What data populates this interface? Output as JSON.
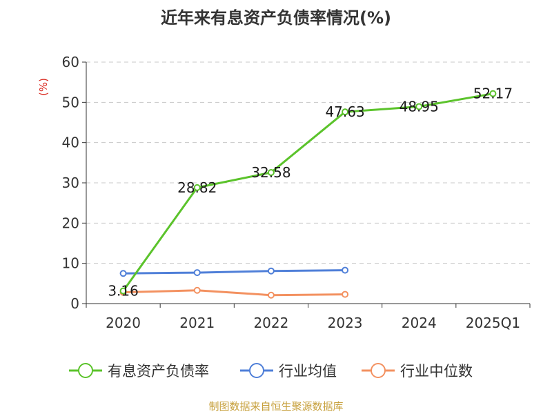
{
  "chart_data": {
    "type": "line",
    "title": "近年来有息资产负债率情况(%)",
    "ylabel": "(%)",
    "ylim": [
      0,
      60
    ],
    "yticks": [
      0,
      10,
      20,
      30,
      40,
      50,
      60
    ],
    "grid": true,
    "legend_position": "bottom",
    "categories": [
      "2020",
      "2021",
      "2022",
      "2023",
      "2024",
      "2025Q1"
    ],
    "series": [
      {
        "name": "有息资产负债率",
        "color": "#5bc32b",
        "values": [
          3.16,
          28.82,
          32.58,
          47.63,
          48.95,
          52.17
        ],
        "labels": [
          "3.16",
          "28.82",
          "32.58",
          "47.63",
          "48.95",
          "52.17"
        ]
      },
      {
        "name": "行业均值",
        "color": "#4f7fd8",
        "values": [
          7.5,
          7.7,
          8.1,
          8.3,
          null,
          null
        ]
      },
      {
        "name": "行业中位数",
        "color": "#f39160",
        "values": [
          2.8,
          3.3,
          2.1,
          2.3,
          null,
          null
        ]
      }
    ],
    "source": "制图数据来自恒生聚源数据库"
  }
}
